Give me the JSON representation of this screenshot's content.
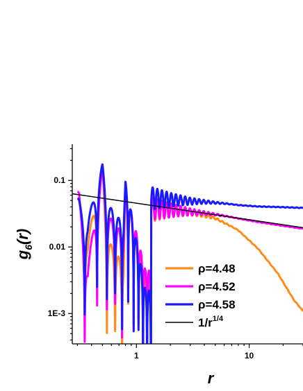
{
  "chart_data": {
    "type": "line",
    "xlabel": "r",
    "ylabel_base": "g",
    "ylabel_sub": "6",
    "ylabel_arg": "(r)",
    "x_scale": "log",
    "y_scale": "log",
    "xlim": [
      0.27,
      30
    ],
    "ylim": [
      0.00035,
      0.35
    ],
    "x_ticks": [
      {
        "value": 1,
        "label": "1"
      },
      {
        "value": 10,
        "label": "10"
      }
    ],
    "y_ticks": [
      {
        "value": 0.1,
        "label": "0.1"
      },
      {
        "value": 0.01,
        "label": "0.01"
      },
      {
        "value": 0.001,
        "label": "1E-3"
      }
    ],
    "grid": false,
    "legend_position": "bottom-right",
    "series": [
      {
        "name": "ρ=4.48",
        "color": "#ff8c1a",
        "envelope": [
          [
            0.52,
            0.14
          ],
          [
            0.8,
            0.075
          ],
          [
            1.2,
            0.055
          ],
          [
            2,
            0.045
          ],
          [
            3,
            0.038
          ],
          [
            5,
            0.028
          ],
          [
            8,
            0.018
          ],
          [
            12,
            0.0095
          ],
          [
            18,
            0.004
          ],
          [
            25,
            0.0016
          ],
          [
            30,
            0.0011
          ]
        ],
        "peaks": [
          [
            0.31,
            0.028
          ],
          [
            0.5,
            0.15
          ],
          [
            0.8,
            0.075
          ]
        ],
        "dips": [
          [
            0.37,
            0.0027
          ],
          [
            0.55,
            0.003
          ],
          [
            0.77,
            0.0009
          ],
          [
            1.2,
            0.0005
          ]
        ]
      },
      {
        "name": "ρ=4.52",
        "color": "#ff00ff",
        "envelope": [
          [
            0.52,
            0.15
          ],
          [
            0.8,
            0.075
          ],
          [
            1.2,
            0.06
          ],
          [
            2,
            0.045
          ],
          [
            3,
            0.038
          ],
          [
            5,
            0.032
          ],
          [
            8,
            0.027
          ],
          [
            12,
            0.024
          ],
          [
            20,
            0.021
          ],
          [
            30,
            0.019
          ]
        ],
        "peaks": [
          [
            0.31,
            0.04
          ],
          [
            0.5,
            0.16
          ],
          [
            0.8,
            0.08
          ]
        ],
        "dips": [
          [
            0.37,
            0.00055
          ],
          [
            0.55,
            0.012
          ],
          [
            0.77,
            0.005
          ],
          [
            1.2,
            0.0008
          ]
        ]
      },
      {
        "name": "ρ=4.58",
        "color": "#1a1aff",
        "envelope": [
          [
            0.52,
            0.17
          ],
          [
            0.8,
            0.095
          ],
          [
            1.2,
            0.085
          ],
          [
            2,
            0.065
          ],
          [
            3,
            0.055
          ],
          [
            5,
            0.048
          ],
          [
            8,
            0.043
          ],
          [
            12,
            0.041
          ],
          [
            20,
            0.04
          ],
          [
            30,
            0.039
          ]
        ],
        "peaks": [
          [
            0.31,
            0.025
          ],
          [
            0.5,
            0.18
          ],
          [
            0.8,
            0.1
          ]
        ],
        "dips": [
          [
            0.37,
            0.007
          ],
          [
            0.55,
            0.02
          ],
          [
            0.77,
            0.008
          ],
          [
            1.2,
            0.0002
          ]
        ]
      },
      {
        "name": "1/r^1/4",
        "color": "#000000",
        "points": [
          [
            0.27,
            0.063
          ],
          [
            30,
            0.0195
          ]
        ]
      }
    ],
    "legend": [
      {
        "label": "ρ=4.48",
        "color": "#ff8c1a"
      },
      {
        "label": "ρ=4.52",
        "color": "#ff00ff"
      },
      {
        "label": "ρ=4.58",
        "color": "#1a1aff"
      },
      {
        "label_base": "1/r",
        "label_sup": "1/4",
        "color": "#000000"
      }
    ]
  }
}
